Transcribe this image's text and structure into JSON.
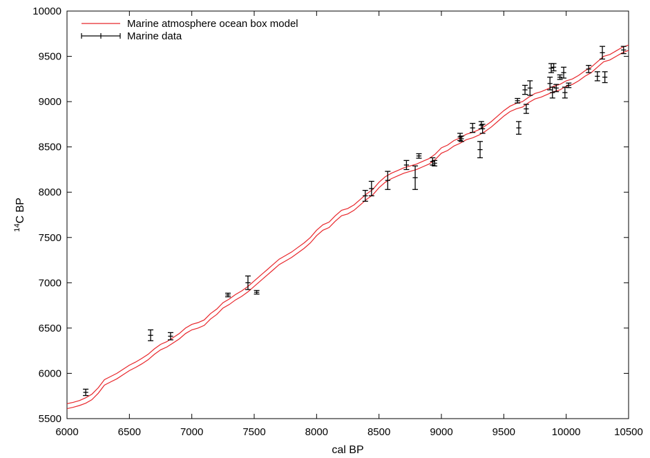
{
  "chart_data": {
    "type": "line",
    "title": "",
    "xlabel": "cal BP",
    "ylabel_sup": "14",
    "ylabel_main": "C BP",
    "xlim": [
      6000,
      10500
    ],
    "ylim": [
      5500,
      10000
    ],
    "xticks": [
      6000,
      6500,
      7000,
      7500,
      8000,
      8500,
      9000,
      9500,
      10000,
      10500
    ],
    "yticks": [
      5500,
      6000,
      6500,
      7000,
      7500,
      8000,
      8500,
      9000,
      9500,
      10000
    ],
    "grid": false,
    "legend_position": "top-left",
    "model": {
      "name": "Marine atmosphere ocean box model",
      "color": "#e8262b",
      "upper": [
        [
          6000,
          5665
        ],
        [
          6050,
          5680
        ],
        [
          6100,
          5700
        ],
        [
          6150,
          5730
        ],
        [
          6200,
          5770
        ],
        [
          6250,
          5840
        ],
        [
          6300,
          5930
        ],
        [
          6350,
          5965
        ],
        [
          6400,
          6000
        ],
        [
          6450,
          6045
        ],
        [
          6500,
          6090
        ],
        [
          6550,
          6125
        ],
        [
          6600,
          6165
        ],
        [
          6650,
          6210
        ],
        [
          6700,
          6270
        ],
        [
          6750,
          6320
        ],
        [
          6800,
          6350
        ],
        [
          6850,
          6395
        ],
        [
          6900,
          6440
        ],
        [
          6950,
          6500
        ],
        [
          7000,
          6540
        ],
        [
          7050,
          6560
        ],
        [
          7100,
          6590
        ],
        [
          7150,
          6660
        ],
        [
          7200,
          6710
        ],
        [
          7250,
          6780
        ],
        [
          7300,
          6820
        ],
        [
          7350,
          6870
        ],
        [
          7400,
          6910
        ],
        [
          7450,
          6960
        ],
        [
          7500,
          7020
        ],
        [
          7550,
          7080
        ],
        [
          7600,
          7140
        ],
        [
          7650,
          7200
        ],
        [
          7700,
          7260
        ],
        [
          7750,
          7300
        ],
        [
          7800,
          7340
        ],
        [
          7850,
          7390
        ],
        [
          7900,
          7440
        ],
        [
          7950,
          7500
        ],
        [
          8000,
          7580
        ],
        [
          8050,
          7640
        ],
        [
          8100,
          7670
        ],
        [
          8150,
          7740
        ],
        [
          8200,
          7800
        ],
        [
          8250,
          7820
        ],
        [
          8300,
          7860
        ],
        [
          8350,
          7920
        ],
        [
          8400,
          7980
        ],
        [
          8450,
          8030
        ],
        [
          8500,
          8110
        ],
        [
          8550,
          8170
        ],
        [
          8600,
          8210
        ],
        [
          8650,
          8240
        ],
        [
          8700,
          8270
        ],
        [
          8750,
          8290
        ],
        [
          8800,
          8310
        ],
        [
          8850,
          8340
        ],
        [
          8900,
          8370
        ],
        [
          8950,
          8420
        ],
        [
          9000,
          8490
        ],
        [
          9050,
          8520
        ],
        [
          9100,
          8570
        ],
        [
          9150,
          8600
        ],
        [
          9200,
          8640
        ],
        [
          9250,
          8660
        ],
        [
          9300,
          8690
        ],
        [
          9350,
          8730
        ],
        [
          9400,
          8780
        ],
        [
          9450,
          8840
        ],
        [
          9500,
          8900
        ],
        [
          9550,
          8950
        ],
        [
          9600,
          8980
        ],
        [
          9650,
          9000
        ],
        [
          9700,
          9050
        ],
        [
          9750,
          9090
        ],
        [
          9800,
          9110
        ],
        [
          9850,
          9140
        ],
        [
          9900,
          9170
        ],
        [
          9950,
          9190
        ],
        [
          10000,
          9230
        ],
        [
          10050,
          9250
        ],
        [
          10100,
          9290
        ],
        [
          10150,
          9340
        ],
        [
          10200,
          9380
        ],
        [
          10250,
          9440
        ],
        [
          10300,
          9500
        ],
        [
          10350,
          9520
        ],
        [
          10400,
          9560
        ],
        [
          10450,
          9600
        ],
        [
          10500,
          9625
        ]
      ],
      "lower": [
        [
          6000,
          5610
        ],
        [
          6050,
          5625
        ],
        [
          6100,
          5645
        ],
        [
          6150,
          5670
        ],
        [
          6200,
          5710
        ],
        [
          6250,
          5780
        ],
        [
          6300,
          5870
        ],
        [
          6350,
          5905
        ],
        [
          6400,
          5940
        ],
        [
          6450,
          5985
        ],
        [
          6500,
          6030
        ],
        [
          6550,
          6065
        ],
        [
          6600,
          6105
        ],
        [
          6650,
          6150
        ],
        [
          6700,
          6210
        ],
        [
          6750,
          6260
        ],
        [
          6800,
          6290
        ],
        [
          6850,
          6335
        ],
        [
          6900,
          6380
        ],
        [
          6950,
          6440
        ],
        [
          7000,
          6480
        ],
        [
          7050,
          6500
        ],
        [
          7100,
          6530
        ],
        [
          7150,
          6600
        ],
        [
          7200,
          6650
        ],
        [
          7250,
          6720
        ],
        [
          7300,
          6760
        ],
        [
          7350,
          6810
        ],
        [
          7400,
          6850
        ],
        [
          7450,
          6900
        ],
        [
          7500,
          6960
        ],
        [
          7550,
          7020
        ],
        [
          7600,
          7080
        ],
        [
          7650,
          7140
        ],
        [
          7700,
          7200
        ],
        [
          7750,
          7240
        ],
        [
          7800,
          7280
        ],
        [
          7850,
          7330
        ],
        [
          7900,
          7380
        ],
        [
          7950,
          7440
        ],
        [
          8000,
          7520
        ],
        [
          8050,
          7580
        ],
        [
          8100,
          7610
        ],
        [
          8150,
          7680
        ],
        [
          8200,
          7740
        ],
        [
          8250,
          7760
        ],
        [
          8300,
          7800
        ],
        [
          8350,
          7860
        ],
        [
          8400,
          7920
        ],
        [
          8450,
          7970
        ],
        [
          8500,
          8050
        ],
        [
          8550,
          8110
        ],
        [
          8600,
          8150
        ],
        [
          8650,
          8180
        ],
        [
          8700,
          8210
        ],
        [
          8750,
          8230
        ],
        [
          8800,
          8250
        ],
        [
          8850,
          8280
        ],
        [
          8900,
          8310
        ],
        [
          8950,
          8360
        ],
        [
          9000,
          8430
        ],
        [
          9050,
          8460
        ],
        [
          9100,
          8510
        ],
        [
          9150,
          8540
        ],
        [
          9200,
          8580
        ],
        [
          9250,
          8600
        ],
        [
          9300,
          8630
        ],
        [
          9350,
          8670
        ],
        [
          9400,
          8720
        ],
        [
          9450,
          8780
        ],
        [
          9500,
          8840
        ],
        [
          9550,
          8890
        ],
        [
          9600,
          8920
        ],
        [
          9650,
          8940
        ],
        [
          9700,
          8990
        ],
        [
          9750,
          9030
        ],
        [
          9800,
          9050
        ],
        [
          9850,
          9080
        ],
        [
          9900,
          9110
        ],
        [
          9950,
          9130
        ],
        [
          10000,
          9170
        ],
        [
          10050,
          9190
        ],
        [
          10100,
          9230
        ],
        [
          10150,
          9280
        ],
        [
          10200,
          9320
        ],
        [
          10250,
          9380
        ],
        [
          10300,
          9440
        ],
        [
          10350,
          9460
        ],
        [
          10400,
          9500
        ],
        [
          10450,
          9540
        ],
        [
          10500,
          9565
        ]
      ]
    },
    "data_series": {
      "name": "Marine data",
      "color": "#000000",
      "points": [
        {
          "x": 6150,
          "y": 5790,
          "xerr": 20,
          "yerr": 35
        },
        {
          "x": 6670,
          "y": 6420,
          "xerr": 20,
          "yerr": 60
        },
        {
          "x": 6830,
          "y": 6410,
          "xerr": 20,
          "yerr": 40
        },
        {
          "x": 7290,
          "y": 6865,
          "xerr": 20,
          "yerr": 20
        },
        {
          "x": 7450,
          "y": 7000,
          "xerr": 20,
          "yerr": 75
        },
        {
          "x": 7520,
          "y": 6895,
          "xerr": 20,
          "yerr": 20
        },
        {
          "x": 8390,
          "y": 7960,
          "xerr": 20,
          "yerr": 60
        },
        {
          "x": 8440,
          "y": 8040,
          "xerr": 20,
          "yerr": 80
        },
        {
          "x": 8570,
          "y": 8130,
          "xerr": 20,
          "yerr": 100
        },
        {
          "x": 8720,
          "y": 8300,
          "xerr": 20,
          "yerr": 50
        },
        {
          "x": 8790,
          "y": 8160,
          "xerr": 20,
          "yerr": 130
        },
        {
          "x": 8820,
          "y": 8400,
          "xerr": 20,
          "yerr": 25
        },
        {
          "x": 8930,
          "y": 8340,
          "xerr": 20,
          "yerr": 40
        },
        {
          "x": 8945,
          "y": 8320,
          "xerr": 20,
          "yerr": 30
        },
        {
          "x": 9150,
          "y": 8610,
          "xerr": 20,
          "yerr": 40
        },
        {
          "x": 9160,
          "y": 8590,
          "xerr": 20,
          "yerr": 30
        },
        {
          "x": 9250,
          "y": 8710,
          "xerr": 20,
          "yerr": 50
        },
        {
          "x": 9310,
          "y": 8470,
          "xerr": 20,
          "yerr": 90
        },
        {
          "x": 9320,
          "y": 8740,
          "xerr": 20,
          "yerr": 40
        },
        {
          "x": 9330,
          "y": 8700,
          "xerr": 20,
          "yerr": 50
        },
        {
          "x": 9610,
          "y": 9010,
          "xerr": 20,
          "yerr": 25
        },
        {
          "x": 9620,
          "y": 8710,
          "xerr": 20,
          "yerr": 70
        },
        {
          "x": 9670,
          "y": 9130,
          "xerr": 20,
          "yerr": 50
        },
        {
          "x": 9680,
          "y": 8920,
          "xerr": 20,
          "yerr": 50
        },
        {
          "x": 9710,
          "y": 9150,
          "xerr": 20,
          "yerr": 80
        },
        {
          "x": 9870,
          "y": 9200,
          "xerr": 20,
          "yerr": 70
        },
        {
          "x": 9880,
          "y": 9370,
          "xerr": 20,
          "yerr": 50
        },
        {
          "x": 9890,
          "y": 9100,
          "xerr": 20,
          "yerr": 60
        },
        {
          "x": 9900,
          "y": 9380,
          "xerr": 20,
          "yerr": 40
        },
        {
          "x": 9920,
          "y": 9150,
          "xerr": 20,
          "yerr": 40
        },
        {
          "x": 9950,
          "y": 9270,
          "xerr": 20,
          "yerr": 25
        },
        {
          "x": 9980,
          "y": 9320,
          "xerr": 20,
          "yerr": 60
        },
        {
          "x": 9990,
          "y": 9100,
          "xerr": 20,
          "yerr": 60
        },
        {
          "x": 10020,
          "y": 9180,
          "xerr": 20,
          "yerr": 25
        },
        {
          "x": 10180,
          "y": 9360,
          "xerr": 20,
          "yerr": 40
        },
        {
          "x": 10250,
          "y": 9280,
          "xerr": 20,
          "yerr": 50
        },
        {
          "x": 10290,
          "y": 9540,
          "xerr": 20,
          "yerr": 70
        },
        {
          "x": 10310,
          "y": 9270,
          "xerr": 20,
          "yerr": 60
        },
        {
          "x": 10460,
          "y": 9570,
          "xerr": 20,
          "yerr": 40
        }
      ]
    }
  }
}
